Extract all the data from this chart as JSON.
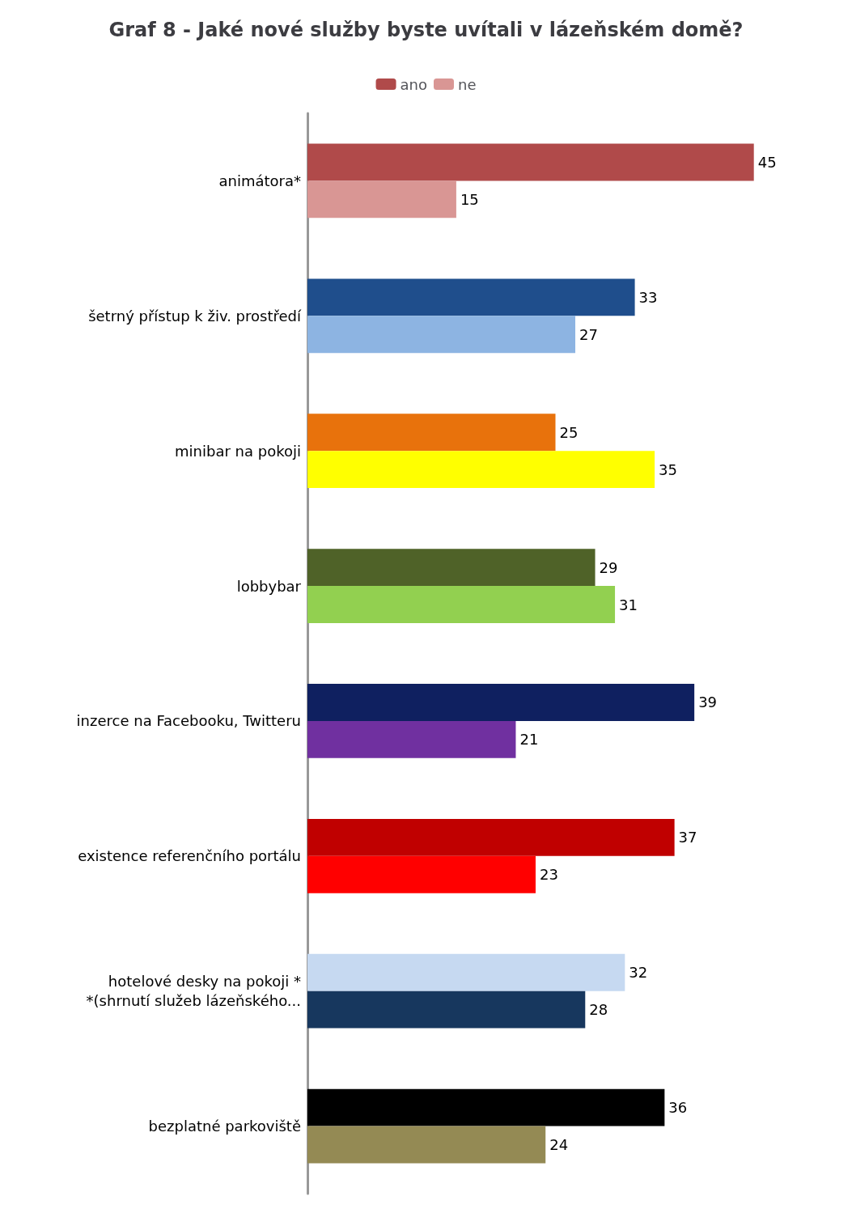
{
  "chart_data": {
    "type": "bar",
    "orientation": "horizontal",
    "title": "Graf 8 - Jaké nové služby byste uvítali v lázeňském domě?",
    "categories": [
      "animátora*",
      "šetrný přístup k živ. prostředí",
      "minibar na pokoji",
      "lobbybar",
      "inzerce na Facebooku, Twitteru",
      "existence referenčního portálu",
      "hotelové desky na pokoji *\n*(shrnutí služeb lázeňského...",
      "bezplatné parkoviště"
    ],
    "series": [
      {
        "name": "ano",
        "color": "#b04a4a",
        "values": [
          45,
          33,
          25,
          29,
          39,
          37,
          32,
          36
        ],
        "colors": [
          "#b04a4a",
          "#1f4e8c",
          "#e8720c",
          "#4f6228",
          "#0f2060",
          "#c00000",
          "#c6d9f1",
          "#000000"
        ]
      },
      {
        "name": "ne",
        "color": "#d99694",
        "values": [
          15,
          27,
          35,
          31,
          21,
          23,
          28,
          24
        ],
        "colors": [
          "#d99694",
          "#8db4e2",
          "#ffff00",
          "#92d050",
          "#7030a0",
          "#ff0000",
          "#17375e",
          "#948a54"
        ]
      }
    ],
    "data_labels": true,
    "legend": "top",
    "tick_labels": "y"
  }
}
